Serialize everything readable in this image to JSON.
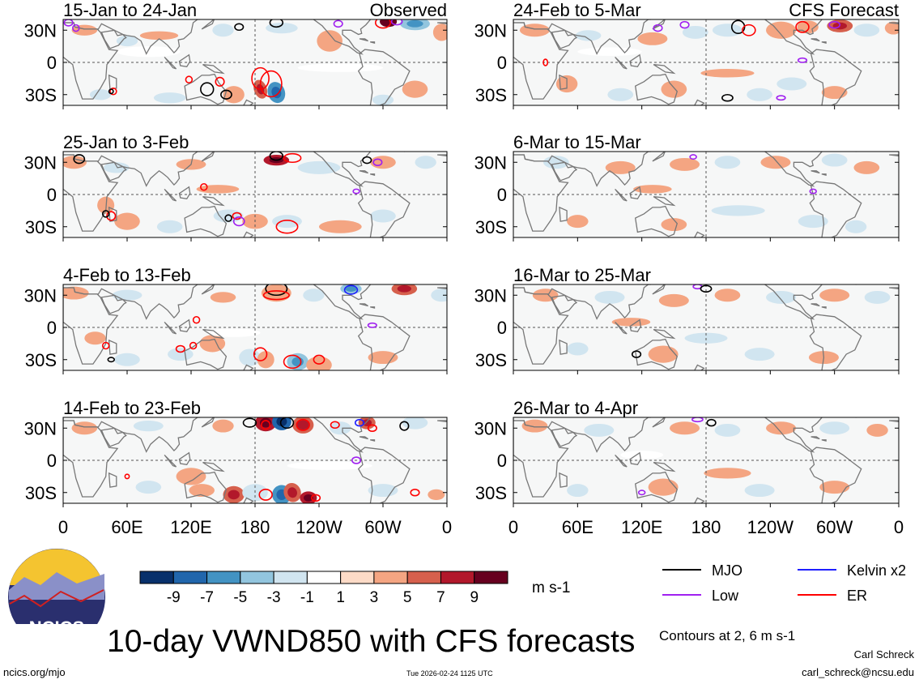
{
  "chart_data": {
    "type": "heatmap",
    "title": "10-day VWND850 with CFS forecasts",
    "variable": "VWND850",
    "units": "m s-1",
    "columns": [
      {
        "header": "Observed",
        "panels": [
          {
            "label": "15-Jan to 24-Jan",
            "source": "Observed"
          },
          {
            "label": "25-Jan to 3-Feb",
            "source": "Observed"
          },
          {
            "label": "4-Feb to 13-Feb",
            "source": "Observed"
          },
          {
            "label": "14-Feb to 23-Feb",
            "source": "Observed"
          }
        ]
      },
      {
        "header": "CFS Forecast",
        "panels": [
          {
            "label": "24-Feb to 5-Mar",
            "source": "CFS Forecast"
          },
          {
            "label": "6-Mar to 15-Mar",
            "source": "CFS Forecast"
          },
          {
            "label": "16-Mar to 25-Mar",
            "source": "CFS Forecast"
          },
          {
            "label": "26-Mar to 4-Apr",
            "source": "CFS Forecast"
          }
        ]
      }
    ],
    "x_axis": {
      "ticks": [
        "0",
        "60E",
        "120E",
        "180",
        "120W",
        "60W",
        "0"
      ],
      "range_deg": [
        0,
        360
      ]
    },
    "y_axis": {
      "ticks": [
        "30N",
        "0",
        "30S"
      ],
      "range_deg": [
        -40,
        40
      ]
    },
    "colorbar": {
      "labels": [
        "-9",
        "-7",
        "-5",
        "-3",
        "-1",
        "1",
        "3",
        "5",
        "7",
        "9"
      ],
      "colors": [
        "#08306b",
        "#2166ac",
        "#4393c3",
        "#92c5de",
        "#d1e5f0",
        "#ffffff",
        "#fddbc7",
        "#f4a582",
        "#d6604d",
        "#b2182b",
        "#67001f"
      ]
    },
    "legend": [
      {
        "name": "MJO",
        "color": "#000000"
      },
      {
        "name": "Kelvin x2",
        "color": "#1f1fff"
      },
      {
        "name": "Low",
        "color": "#a020f0"
      },
      {
        "name": "ER",
        "color": "#ff0000"
      }
    ],
    "contour_note": "Contours at 2, 6 m s-1"
  },
  "logo_text": "NCICS",
  "footer": {
    "url": "ncics.org/mjo",
    "timestamp": "Tue 2026-02-24 1125 UTC",
    "author": "Carl Schreck",
    "email": "carl_schreck@ncsu.edu"
  }
}
